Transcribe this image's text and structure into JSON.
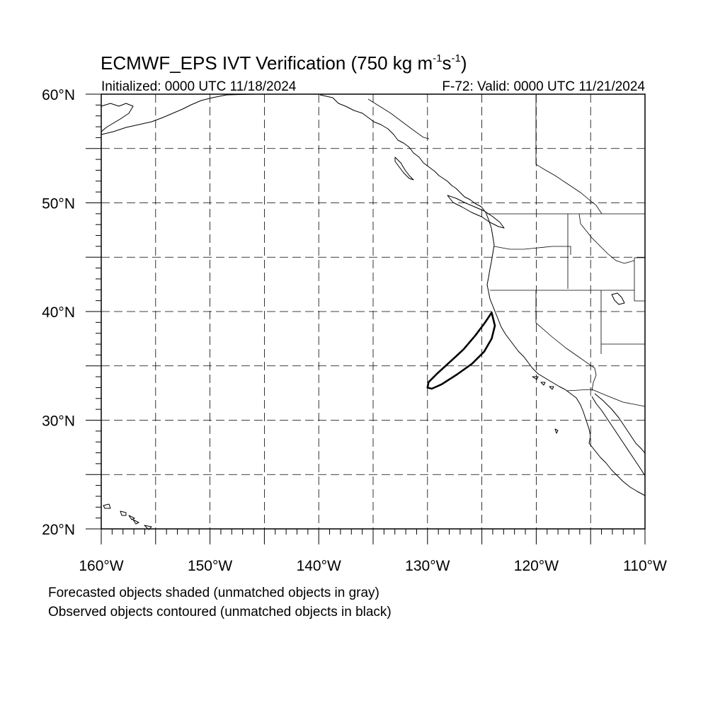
{
  "title": {
    "main": "ECMWF_EPS IVT Verification (750 kg m",
    "exp1": "-1",
    "mid": "s",
    "exp2": "-1",
    "close": ")"
  },
  "subtitle": {
    "left": "Initialized: 0000 UTC 11/18/2024",
    "right": "F-72: Valid: 0000 UTC 11/21/2024"
  },
  "map": {
    "lon_range": [
      -160,
      -110
    ],
    "lat_range": [
      20,
      60
    ],
    "grid_step_deg": 5,
    "grid": true,
    "lat_labels": [
      {
        "value": 60,
        "label": "60°N"
      },
      {
        "value": 50,
        "label": "50°N"
      },
      {
        "value": 40,
        "label": "40°N"
      },
      {
        "value": 30,
        "label": "30°N"
      },
      {
        "value": 20,
        "label": "20°N"
      }
    ],
    "lon_labels": [
      {
        "value": -160,
        "label": "160°W"
      },
      {
        "value": -150,
        "label": "150°W"
      },
      {
        "value": -140,
        "label": "140°W"
      },
      {
        "value": -130,
        "label": "130°W"
      },
      {
        "value": -120,
        "label": "120°W"
      },
      {
        "value": -110,
        "label": "110°W"
      }
    ],
    "observed_object": {
      "status": "unmatched",
      "color": "#000000",
      "outline_lonlat": [
        [
          -124.1,
          39.9
        ],
        [
          -124.7,
          39.0
        ],
        [
          -125.6,
          37.8
        ],
        [
          -126.7,
          36.5
        ],
        [
          -128.0,
          35.3
        ],
        [
          -129.1,
          34.3
        ],
        [
          -129.9,
          33.5
        ],
        [
          -130.0,
          33.0
        ],
        [
          -129.6,
          32.9
        ],
        [
          -128.7,
          33.3
        ],
        [
          -127.3,
          34.2
        ],
        [
          -125.9,
          35.2
        ],
        [
          -124.8,
          36.3
        ],
        [
          -124.1,
          37.5
        ],
        [
          -123.8,
          38.7
        ],
        [
          -124.1,
          39.9
        ]
      ]
    }
  },
  "notes": {
    "line1": "Forecasted objects shaded (unmatched objects in gray)",
    "line2": "Observed objects contoured (unmatched objects in black)"
  }
}
